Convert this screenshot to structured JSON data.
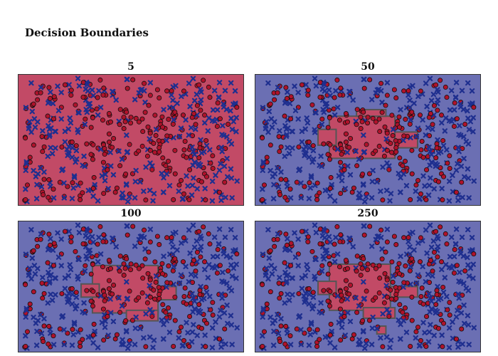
{
  "figure_title": "Decision Boundaries",
  "colors": {
    "region_class0": "#6b6fb3",
    "region_class1": "#c24a66",
    "edge": "#555555",
    "points_class0": "#1f2f8f",
    "points_class1": "#b0122b",
    "point_stroke": "#101010"
  },
  "chart_data": [
    {
      "type": "scatter",
      "title": "5",
      "xlim": [
        0,
        1
      ],
      "ylim": [
        0,
        1
      ],
      "grid": false,
      "regions_class1": [
        [
          [
            0,
            0
          ],
          [
            1,
            1
          ]
        ]
      ]
    },
    {
      "type": "scatter",
      "title": "50",
      "xlim": [
        0,
        1
      ],
      "ylim": [
        0,
        1
      ],
      "grid": false,
      "regions_class1": [
        [
          [
            0.33,
            0.36
          ],
          [
            0.62,
            0.68
          ]
        ],
        [
          [
            0.28,
            0.46
          ],
          [
            0.36,
            0.58
          ]
        ],
        [
          [
            0.62,
            0.44
          ],
          [
            0.72,
            0.56
          ]
        ],
        [
          [
            0.45,
            0.68
          ],
          [
            0.58,
            0.73
          ]
        ]
      ]
    },
    {
      "type": "scatter",
      "title": "100",
      "xlim": [
        0,
        1
      ],
      "ylim": [
        0,
        1
      ],
      "grid": false,
      "regions_class1": [
        [
          [
            0.33,
            0.3
          ],
          [
            0.62,
            0.66
          ]
        ],
        [
          [
            0.28,
            0.42
          ],
          [
            0.36,
            0.52
          ]
        ],
        [
          [
            0.62,
            0.4
          ],
          [
            0.7,
            0.5
          ]
        ],
        [
          [
            0.48,
            0.24
          ],
          [
            0.62,
            0.32
          ]
        ]
      ]
    },
    {
      "type": "scatter",
      "title": "250",
      "xlim": [
        0,
        1
      ],
      "ylim": [
        0,
        1
      ],
      "grid": false,
      "regions_class1": [
        [
          [
            0.33,
            0.32
          ],
          [
            0.6,
            0.67
          ]
        ],
        [
          [
            0.28,
            0.44
          ],
          [
            0.36,
            0.54
          ]
        ],
        [
          [
            0.6,
            0.42
          ],
          [
            0.72,
            0.5
          ]
        ],
        [
          [
            0.48,
            0.26
          ],
          [
            0.62,
            0.34
          ]
        ],
        [
          [
            0.54,
            0.14
          ],
          [
            0.58,
            0.2
          ]
        ]
      ]
    }
  ]
}
